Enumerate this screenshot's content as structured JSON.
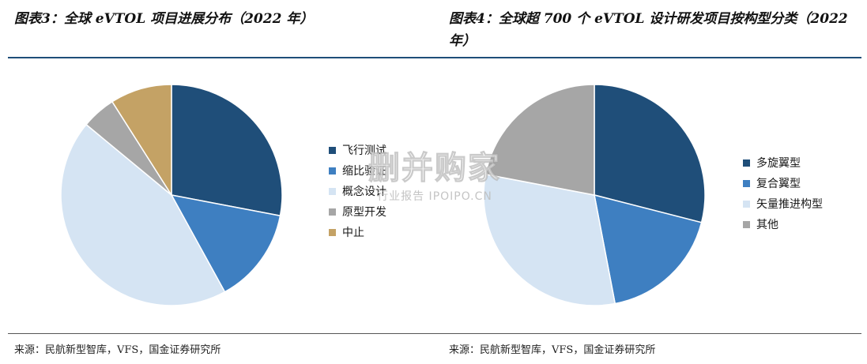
{
  "titles": {
    "left": "图表3：全球 eVTOL 项目进展分布（2022 年）",
    "right": "图表4：全球超 700 个 eVTOL 设计研发项目按构型分类（2022 年）"
  },
  "sources": {
    "left": "来源：民航新型智库，VFS，国金证券研究所",
    "right": "来源：民航新型智库，VFS，国金证券研究所"
  },
  "watermark": {
    "main": "删并购家",
    "sub": "行业报告 IPOIPO.CN"
  },
  "chart_data": [
    {
      "type": "pie",
      "title": "图表3：全球 eVTOL 项目进展分布（2022 年）",
      "legend_position": "right",
      "slices": [
        {
          "label": "飞行测试",
          "value": 28,
          "color": "#1f4e79"
        },
        {
          "label": "缩比验证",
          "value": 14,
          "color": "#3e7fc1"
        },
        {
          "label": "概念设计",
          "value": 44,
          "color": "#d5e4f3"
        },
        {
          "label": "原型开发",
          "value": 5,
          "color": "#a6a6a6"
        },
        {
          "label": "中止",
          "value": 9,
          "color": "#c4a265"
        }
      ]
    },
    {
      "type": "pie",
      "title": "图表4：全球超 700 个 eVTOL 设计研发项目按构型分类（2022 年）",
      "legend_position": "right",
      "slices": [
        {
          "label": "多旋翼型",
          "value": 29,
          "color": "#1f4e79"
        },
        {
          "label": "复合翼型",
          "value": 18,
          "color": "#3e7fc1"
        },
        {
          "label": "矢量推进构型",
          "value": 31,
          "color": "#d5e4f3"
        },
        {
          "label": "其他",
          "value": 22,
          "color": "#a6a6a6"
        }
      ]
    }
  ]
}
